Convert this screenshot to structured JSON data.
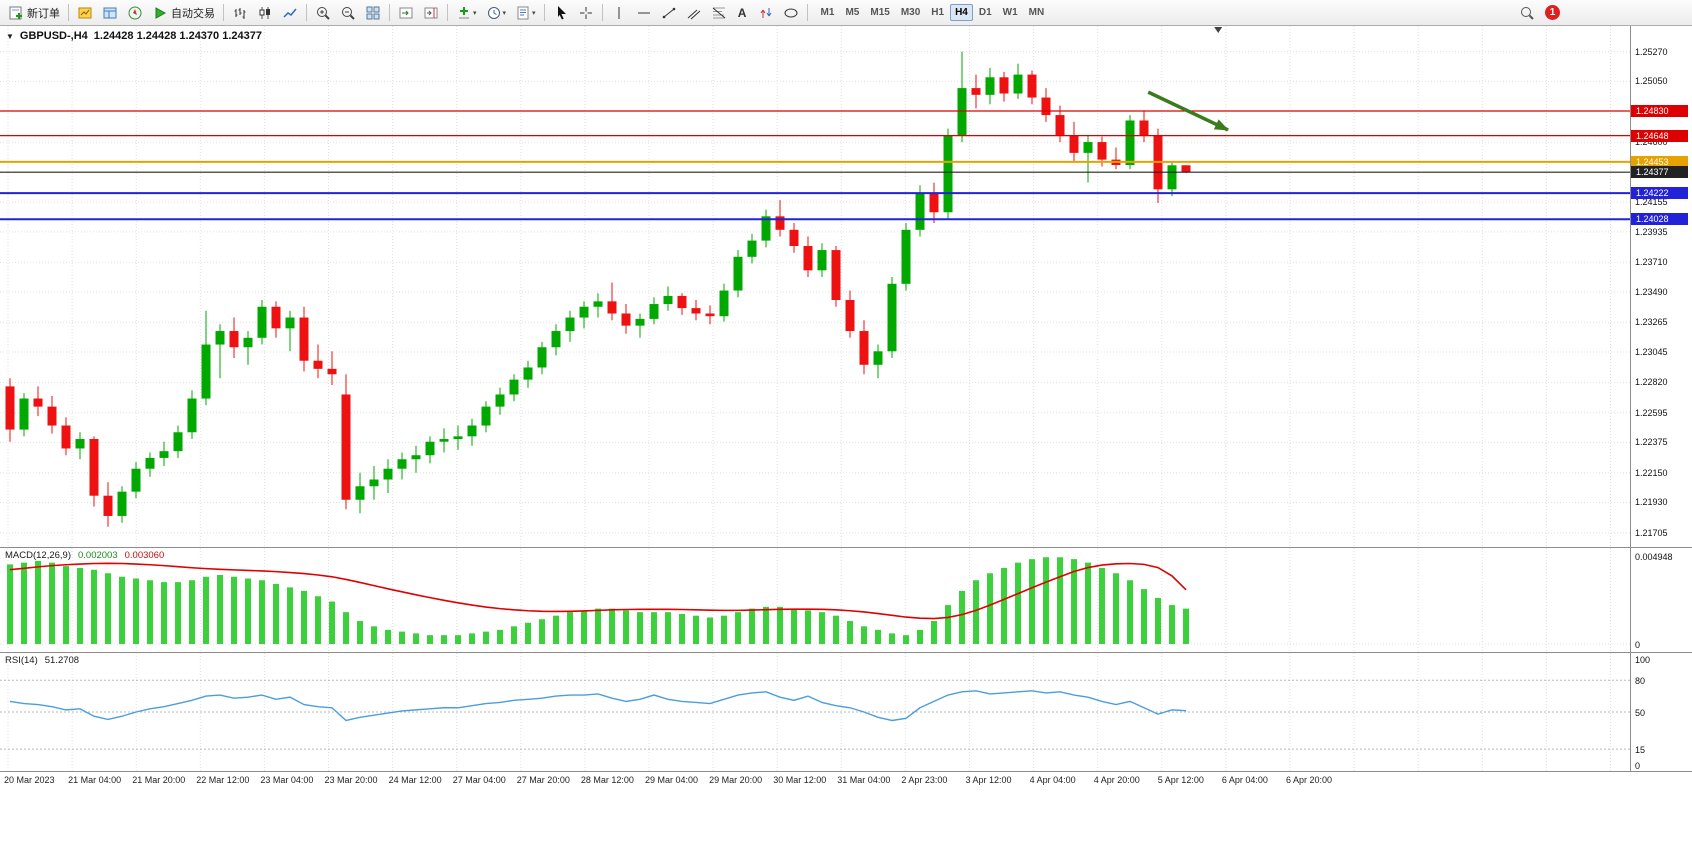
{
  "toolbar": {
    "new_order": "新订单",
    "autotrading": "自动交易",
    "timeframes": [
      "M1",
      "M5",
      "M15",
      "M30",
      "H1",
      "H4",
      "D1",
      "W1",
      "MN"
    ],
    "active_timeframe": "H4",
    "notification_count": "1"
  },
  "time_axis": {
    "labels": [
      "20 Mar 2023",
      "21 Mar 04:00",
      "21 Mar 20:00",
      "22 Mar 12:00",
      "23 Mar 04:00",
      "23 Mar 20:00",
      "24 Mar 12:00",
      "27 Mar 04:00",
      "27 Mar 20:00",
      "28 Mar 12:00",
      "29 Mar 04:00",
      "29 Mar 20:00",
      "30 Mar 12:00",
      "31 Mar 04:00",
      "2 Apr 23:00",
      "3 Apr 12:00",
      "4 Apr 04:00",
      "4 Apr 20:00",
      "5 Apr 12:00",
      "6 Apr 04:00",
      "6 Apr 20:00"
    ]
  },
  "colors": {
    "bull": "#00a800",
    "bear": "#ee1111",
    "macd_hist": "#3cd03c",
    "macd_signal": "#e00000",
    "rsi_line": "#4a9ede",
    "level_red": "#dd0000",
    "level_orange": "#e8a200",
    "level_blue": "#2222d8",
    "current_price_line": "#333333",
    "arrow": "#3c7a1e"
  },
  "chart_data": [
    {
      "type": "candlestick",
      "title": "GBPUSD-,H4",
      "ohlc_label": "1.24428 1.24428 1.24370 1.24377",
      "ylim": [
        1.216,
        1.2546
      ],
      "price_axis_labels": [
        "1.25270",
        "1.25050",
        "1.24600",
        "1.24155",
        "1.23935",
        "1.23710",
        "1.23490",
        "1.23265",
        "1.23045",
        "1.22820",
        "1.22595",
        "1.22375",
        "1.22150",
        "1.21930",
        "1.21705"
      ],
      "levels": [
        {
          "price": 1.2483,
          "label": "1.24830",
          "color": "#dd0000",
          "width": 1.3
        },
        {
          "price": 1.24648,
          "label": "1.24648",
          "color": "#dd0000",
          "width": 1.3
        },
        {
          "price": 1.24453,
          "label": "1.24453",
          "color": "#e8a200",
          "width": 2
        },
        {
          "price": 1.24222,
          "label": "1.24222",
          "color": "#2222d8",
          "width": 2
        },
        {
          "price": 1.24028,
          "label": "1.24028",
          "color": "#2222d8",
          "width": 2
        }
      ],
      "current_price": {
        "price": 1.24377,
        "label": "1.24377",
        "color": "#222222"
      },
      "arrow": {
        "from_bar": 81.3,
        "from_price": 1.2497,
        "to_bar": 87,
        "to_price": 1.2469
      },
      "shift_marker_bar": 86.3,
      "candles": [
        [
          1.2279,
          1.2285,
          1.2238,
          1.2247
        ],
        [
          1.2247,
          1.2274,
          1.2242,
          1.227
        ],
        [
          1.227,
          1.2279,
          1.2257,
          1.2264
        ],
        [
          1.2264,
          1.2272,
          1.2244,
          1.225
        ],
        [
          1.225,
          1.2256,
          1.2228,
          1.2233
        ],
        [
          1.2233,
          1.2245,
          1.2225,
          1.224
        ],
        [
          1.224,
          1.2242,
          1.219,
          1.2198
        ],
        [
          1.2198,
          1.2208,
          1.2175,
          1.2183
        ],
        [
          1.2183,
          1.2205,
          1.2178,
          1.2201
        ],
        [
          1.2201,
          1.2223,
          1.2196,
          1.2218
        ],
        [
          1.2218,
          1.223,
          1.2212,
          1.2226
        ],
        [
          1.2226,
          1.2238,
          1.222,
          1.2231
        ],
        [
          1.2231,
          1.225,
          1.2226,
          1.2245
        ],
        [
          1.2245,
          1.2276,
          1.224,
          1.227
        ],
        [
          1.227,
          1.2335,
          1.2265,
          1.231
        ],
        [
          1.231,
          1.2325,
          1.2285,
          1.232
        ],
        [
          1.232,
          1.233,
          1.23,
          1.2308
        ],
        [
          1.2308,
          1.232,
          1.2295,
          1.2315
        ],
        [
          1.2315,
          1.2343,
          1.231,
          1.2338
        ],
        [
          1.2338,
          1.2342,
          1.2315,
          1.2322
        ],
        [
          1.2322,
          1.2335,
          1.2305,
          1.233
        ],
        [
          1.233,
          1.2338,
          1.229,
          1.2298
        ],
        [
          1.2298,
          1.231,
          1.2285,
          1.2292
        ],
        [
          1.2292,
          1.2305,
          1.228,
          1.2288
        ],
        [
          1.2273,
          1.2288,
          1.2188,
          1.2195
        ],
        [
          1.2195,
          1.2215,
          1.2185,
          1.2205
        ],
        [
          1.2205,
          1.222,
          1.2195,
          1.221
        ],
        [
          1.221,
          1.2225,
          1.22,
          1.2218
        ],
        [
          1.2218,
          1.223,
          1.221,
          1.2225
        ],
        [
          1.2225,
          1.2235,
          1.2215,
          1.2228
        ],
        [
          1.2228,
          1.2242,
          1.2222,
          1.2238
        ],
        [
          1.2238,
          1.2248,
          1.223,
          1.224
        ],
        [
          1.224,
          1.225,
          1.2232,
          1.2242
        ],
        [
          1.2242,
          1.2255,
          1.2235,
          1.225
        ],
        [
          1.225,
          1.2268,
          1.2245,
          1.2264
        ],
        [
          1.2264,
          1.2278,
          1.2258,
          1.2273
        ],
        [
          1.2273,
          1.2288,
          1.2268,
          1.2284
        ],
        [
          1.2284,
          1.2298,
          1.2278,
          1.2293
        ],
        [
          1.2293,
          1.2312,
          1.2288,
          1.2308
        ],
        [
          1.2308,
          1.2325,
          1.2302,
          1.232
        ],
        [
          1.232,
          1.2335,
          1.2312,
          1.233
        ],
        [
          1.233,
          1.2342,
          1.2322,
          1.2338
        ],
        [
          1.2338,
          1.2348,
          1.233,
          1.2342
        ],
        [
          1.2342,
          1.2356,
          1.2328,
          1.2333
        ],
        [
          1.2333,
          1.234,
          1.2318,
          1.2324
        ],
        [
          1.2324,
          1.2333,
          1.2315,
          1.2329
        ],
        [
          1.2329,
          1.2345,
          1.2325,
          1.234
        ],
        [
          1.234,
          1.2353,
          1.2335,
          1.2346
        ],
        [
          1.2346,
          1.2348,
          1.2332,
          1.2337
        ],
        [
          1.2337,
          1.2343,
          1.2328,
          1.2333
        ],
        [
          1.2333,
          1.2339,
          1.2325,
          1.2331
        ],
        [
          1.2331,
          1.2355,
          1.2327,
          1.235
        ],
        [
          1.235,
          1.238,
          1.2345,
          1.2375
        ],
        [
          1.2375,
          1.2392,
          1.237,
          1.2387
        ],
        [
          1.2387,
          1.241,
          1.2382,
          1.2405
        ],
        [
          1.2405,
          1.2417,
          1.239,
          1.2395
        ],
        [
          1.2395,
          1.24,
          1.2378,
          1.2383
        ],
        [
          1.2383,
          1.239,
          1.236,
          1.2365
        ],
        [
          1.2365,
          1.2385,
          1.236,
          1.238
        ],
        [
          1.238,
          1.2383,
          1.2338,
          1.2343
        ],
        [
          1.2343,
          1.235,
          1.2315,
          1.232
        ],
        [
          1.232,
          1.2328,
          1.2288,
          1.2295
        ],
        [
          1.2295,
          1.231,
          1.2285,
          1.2305
        ],
        [
          1.2305,
          1.236,
          1.23,
          1.2355
        ],
        [
          1.2355,
          1.24,
          1.235,
          1.2395
        ],
        [
          1.2395,
          1.2428,
          1.239,
          1.2422
        ],
        [
          1.2422,
          1.243,
          1.24,
          1.2408
        ],
        [
          1.2408,
          1.247,
          1.2403,
          1.2465
        ],
        [
          1.2465,
          1.2527,
          1.246,
          1.25
        ],
        [
          1.25,
          1.251,
          1.2485,
          1.2495
        ],
        [
          1.2495,
          1.2515,
          1.2488,
          1.2508
        ],
        [
          1.2508,
          1.2512,
          1.249,
          1.2496
        ],
        [
          1.2496,
          1.2518,
          1.2492,
          1.251
        ],
        [
          1.251,
          1.2513,
          1.2488,
          1.2493
        ],
        [
          1.2493,
          1.25,
          1.2475,
          1.248
        ],
        [
          1.248,
          1.2487,
          1.246,
          1.2465
        ],
        [
          1.2465,
          1.2475,
          1.2445,
          1.2452
        ],
        [
          1.2452,
          1.2465,
          1.243,
          1.246
        ],
        [
          1.246,
          1.2464,
          1.2442,
          1.2447
        ],
        [
          1.2447,
          1.2456,
          1.244,
          1.2443
        ],
        [
          1.2443,
          1.248,
          1.244,
          1.2476
        ],
        [
          1.2476,
          1.2483,
          1.246,
          1.2465
        ],
        [
          1.2465,
          1.247,
          1.2415,
          1.2425
        ],
        [
          1.2425,
          1.2445,
          1.242,
          1.24428
        ],
        [
          1.24428,
          1.24428,
          1.2437,
          1.24377
        ]
      ]
    },
    {
      "type": "bar",
      "name": "MACD(12,26,9)",
      "value_macd": "0.002003",
      "value_signal": "0.003060",
      "ymax": 0.0052,
      "axis_labels": [
        {
          "label": "0.004948",
          "value": 0.004948
        },
        {
          "label": "0",
          "value": 0
        }
      ],
      "histogram": [
        0.0045,
        0.0046,
        0.0047,
        0.0046,
        0.0044,
        0.0043,
        0.0042,
        0.004,
        0.0038,
        0.0037,
        0.0036,
        0.0035,
        0.0035,
        0.0036,
        0.0038,
        0.0039,
        0.0038,
        0.0037,
        0.0036,
        0.0034,
        0.0032,
        0.003,
        0.0027,
        0.0024,
        0.0018,
        0.0013,
        0.001,
        0.0008,
        0.0007,
        0.0006,
        0.0005,
        0.0005,
        0.0005,
        0.0006,
        0.0007,
        0.0008,
        0.001,
        0.0012,
        0.0014,
        0.0016,
        0.0018,
        0.0019,
        0.002,
        0.002,
        0.0019,
        0.0018,
        0.0018,
        0.0018,
        0.0017,
        0.0016,
        0.0015,
        0.0016,
        0.0018,
        0.002,
        0.0021,
        0.0021,
        0.002,
        0.0019,
        0.0018,
        0.0016,
        0.0013,
        0.001,
        0.0008,
        0.0006,
        0.0005,
        0.0008,
        0.0013,
        0.0022,
        0.003,
        0.0036,
        0.004,
        0.0043,
        0.0046,
        0.0048,
        0.0049,
        0.0049,
        0.0048,
        0.0046,
        0.0043,
        0.004,
        0.0036,
        0.0031,
        0.0026,
        0.0022,
        0.002
      ],
      "signal": [
        0.0042,
        0.00428,
        0.00436,
        0.00443,
        0.00448,
        0.00452,
        0.00455,
        0.00456,
        0.00455,
        0.00452,
        0.00448,
        0.00443,
        0.00437,
        0.00431,
        0.00426,
        0.00422,
        0.00419,
        0.00416,
        0.00413,
        0.00409,
        0.00404,
        0.00398,
        0.0039,
        0.0038,
        0.00365,
        0.00348,
        0.0033,
        0.00312,
        0.00295,
        0.00278,
        0.00262,
        0.00247,
        0.00233,
        0.0022,
        0.00209,
        0.002,
        0.00193,
        0.00188,
        0.00185,
        0.00184,
        0.00185,
        0.00187,
        0.0019,
        0.00193,
        0.00195,
        0.00196,
        0.00196,
        0.00196,
        0.00195,
        0.00193,
        0.00191,
        0.0019,
        0.0019,
        0.00192,
        0.00194,
        0.00196,
        0.00197,
        0.00197,
        0.00196,
        0.00193,
        0.00188,
        0.00181,
        0.00172,
        0.00162,
        0.00152,
        0.00146,
        0.00144,
        0.0015,
        0.00166,
        0.0019,
        0.0022,
        0.00252,
        0.00285,
        0.00318,
        0.0035,
        0.0038,
        0.0041,
        0.00432,
        0.00446,
        0.00453,
        0.00455,
        0.0045,
        0.00432,
        0.00385,
        0.00306
      ]
    },
    {
      "type": "line",
      "name": "RSI(14)",
      "value": "51.2708",
      "ylim": [
        0,
        100
      ],
      "level_lines": [
        80,
        50,
        15
      ],
      "axis_labels": [
        {
          "label": "100",
          "value": 100
        },
        {
          "label": "80",
          "value": 80
        },
        {
          "label": "50",
          "value": 50
        },
        {
          "label": "15",
          "value": 15
        },
        {
          "label": "0",
          "value": 0
        }
      ],
      "values": [
        60,
        58,
        57,
        55,
        52,
        53,
        46,
        43,
        46,
        50,
        53,
        55,
        58,
        61,
        65,
        66,
        63,
        64,
        66,
        62,
        64,
        57,
        55,
        54,
        42,
        45,
        47,
        49,
        51,
        52,
        53,
        54,
        54,
        56,
        58,
        59,
        61,
        62,
        63,
        65,
        66,
        66,
        67,
        63,
        60,
        62,
        66,
        62,
        60,
        59,
        58,
        62,
        66,
        68,
        69,
        64,
        61,
        65,
        59,
        56,
        54,
        50,
        45,
        42,
        44,
        54,
        60,
        66,
        69,
        70,
        67,
        68,
        69,
        70,
        68,
        69,
        66,
        64,
        60,
        57,
        60,
        54,
        48,
        52,
        51.27
      ]
    }
  ]
}
